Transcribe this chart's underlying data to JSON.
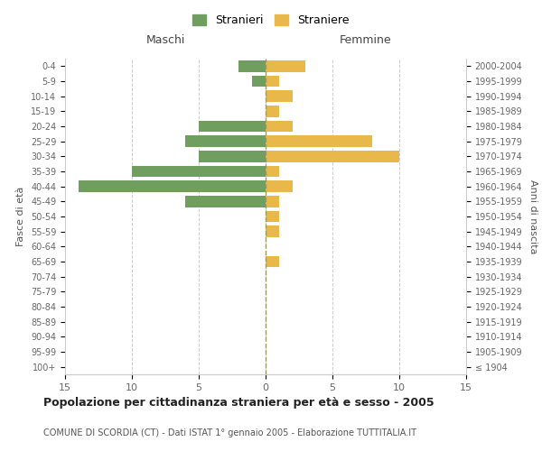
{
  "age_groups": [
    "100+",
    "95-99",
    "90-94",
    "85-89",
    "80-84",
    "75-79",
    "70-74",
    "65-69",
    "60-64",
    "55-59",
    "50-54",
    "45-49",
    "40-44",
    "35-39",
    "30-34",
    "25-29",
    "20-24",
    "15-19",
    "10-14",
    "5-9",
    "0-4"
  ],
  "birth_years": [
    "≤ 1904",
    "1905-1909",
    "1910-1914",
    "1915-1919",
    "1920-1924",
    "1925-1929",
    "1930-1934",
    "1935-1939",
    "1940-1944",
    "1945-1949",
    "1950-1954",
    "1955-1959",
    "1960-1964",
    "1965-1969",
    "1970-1974",
    "1975-1979",
    "1980-1984",
    "1985-1989",
    "1990-1994",
    "1995-1999",
    "2000-2004"
  ],
  "males": [
    0,
    0,
    0,
    0,
    0,
    0,
    0,
    0,
    0,
    0,
    0,
    6,
    14,
    10,
    5,
    6,
    5,
    0,
    0,
    1,
    2
  ],
  "females": [
    0,
    0,
    0,
    0,
    0,
    0,
    0,
    1,
    0,
    1,
    1,
    1,
    2,
    1,
    10,
    8,
    2,
    1,
    2,
    1,
    3
  ],
  "male_color": "#6f9e5e",
  "female_color": "#e8b84b",
  "title": "Popolazione per cittadinanza straniera per età e sesso - 2005",
  "subtitle": "COMUNE DI SCORDIA (CT) - Dati ISTAT 1° gennaio 2005 - Elaborazione TUTTITALIA.IT",
  "legend_male": "Stranieri",
  "legend_female": "Straniere",
  "xlabel_left": "Maschi",
  "xlabel_right": "Femmine",
  "ylabel_left": "Fasce di età",
  "ylabel_right": "Anni di nascita",
  "xlim": 15,
  "background_color": "#ffffff",
  "grid_color": "#cccccc",
  "axis_label_color": "#555555",
  "tick_label_color": "#666666"
}
